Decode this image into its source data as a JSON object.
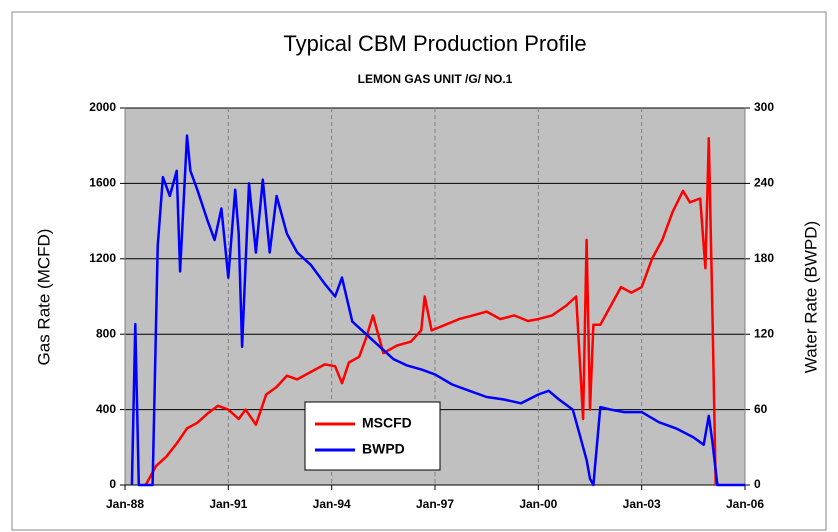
{
  "chart_data": {
    "type": "line",
    "title": "Typical CBM Production Profile",
    "subtitle": "LEMON GAS UNIT /G/ NO.1",
    "ylabel": "Gas Rate (MCFD)",
    "y2label": "Water Rate (BWPD)",
    "xlim": [
      1988,
      2006
    ],
    "xticks": [
      {
        "value": 1988,
        "label": "Jan-88"
      },
      {
        "value": 1991,
        "label": "Jan-91"
      },
      {
        "value": 1994,
        "label": "Jan-94"
      },
      {
        "value": 1997,
        "label": "Jan-97"
      },
      {
        "value": 2000,
        "label": "Jan-00"
      },
      {
        "value": 2003,
        "label": "Jan-03"
      },
      {
        "value": 2006,
        "label": "Jan-06"
      }
    ],
    "ylim": [
      0,
      2000
    ],
    "yticks": [
      0,
      400,
      800,
      1200,
      1600,
      2000
    ],
    "y2lim": [
      0,
      300
    ],
    "y2ticks": [
      0,
      60,
      120,
      180,
      240,
      300
    ],
    "grid": true,
    "series": [
      {
        "name": "MSCFD",
        "color": "#ff0000",
        "x": [
          1988.6,
          1988.9,
          1989.2,
          1989.5,
          1989.8,
          1990.1,
          1990.4,
          1990.7,
          1991.0,
          1991.3,
          1991.5,
          1991.8,
          1992.1,
          1992.4,
          1992.7,
          1993.0,
          1993.4,
          1993.8,
          1994.1,
          1994.3,
          1994.5,
          1994.8,
          1995.0,
          1995.2,
          1995.5,
          1995.9,
          1996.3,
          1996.6,
          1996.7,
          1996.9,
          1997.3,
          1997.7,
          1998.1,
          1998.5,
          1998.9,
          1999.3,
          1999.7,
          2000.0,
          2000.4,
          2000.8,
          2001.1,
          2001.3,
          2001.4,
          2001.5,
          2001.6,
          2001.8,
          2002.1,
          2002.4,
          2002.7,
          2003.0,
          2003.3,
          2003.6,
          2003.9,
          2004.2,
          2004.4,
          2004.7,
          2004.85,
          2004.95,
          2005.05,
          2005.15
        ],
        "values": [
          0,
          100,
          150,
          220,
          300,
          330,
          380,
          420,
          400,
          350,
          400,
          320,
          480,
          520,
          580,
          560,
          600,
          640,
          630,
          540,
          650,
          680,
          780,
          900,
          700,
          740,
          760,
          820,
          1000,
          820,
          850,
          880,
          900,
          920,
          880,
          900,
          870,
          880,
          900,
          950,
          1000,
          350,
          1300,
          400,
          850,
          850,
          950,
          1050,
          1020,
          1050,
          1200,
          1300,
          1450,
          1560,
          1500,
          1520,
          1150,
          1840,
          950,
          0
        ]
      },
      {
        "name": "BWPD",
        "color": "#0000ff",
        "axis": "y2",
        "x": [
          1988.2,
          1988.3,
          1988.4,
          1988.5,
          1988.8,
          1988.95,
          1989.1,
          1989.3,
          1989.5,
          1989.6,
          1989.8,
          1989.9,
          1990.1,
          1990.4,
          1990.6,
          1990.8,
          1991.0,
          1991.2,
          1991.3,
          1991.4,
          1991.6,
          1991.8,
          1992.0,
          1992.2,
          1992.4,
          1992.7,
          1993.0,
          1993.4,
          1993.8,
          1994.1,
          1994.3,
          1994.6,
          1995.0,
          1995.4,
          1995.8,
          1996.2,
          1996.6,
          1997.0,
          1997.5,
          1998.0,
          1998.5,
          1999.0,
          1999.5,
          2000.0,
          2000.3,
          2000.6,
          2001.0,
          2001.2,
          2001.4,
          2001.5,
          2001.6,
          2001.8,
          2002.1,
          2002.5,
          2003.0,
          2003.5,
          2004.0,
          2004.5,
          2004.8,
          2004.95,
          2005.05,
          2005.2,
          2006.0
        ],
        "values": [
          0,
          128,
          0,
          0,
          0,
          190,
          245,
          230,
          250,
          170,
          278,
          250,
          235,
          210,
          195,
          220,
          165,
          235,
          200,
          110,
          240,
          185,
          243,
          185,
          230,
          200,
          185,
          175,
          160,
          150,
          165,
          130,
          120,
          110,
          100,
          95,
          92,
          88,
          80,
          75,
          70,
          68,
          65,
          72,
          75,
          68,
          60,
          40,
          20,
          5,
          0,
          62,
          60,
          58,
          58,
          50,
          45,
          38,
          32,
          55,
          35,
          0,
          0
        ]
      }
    ]
  }
}
